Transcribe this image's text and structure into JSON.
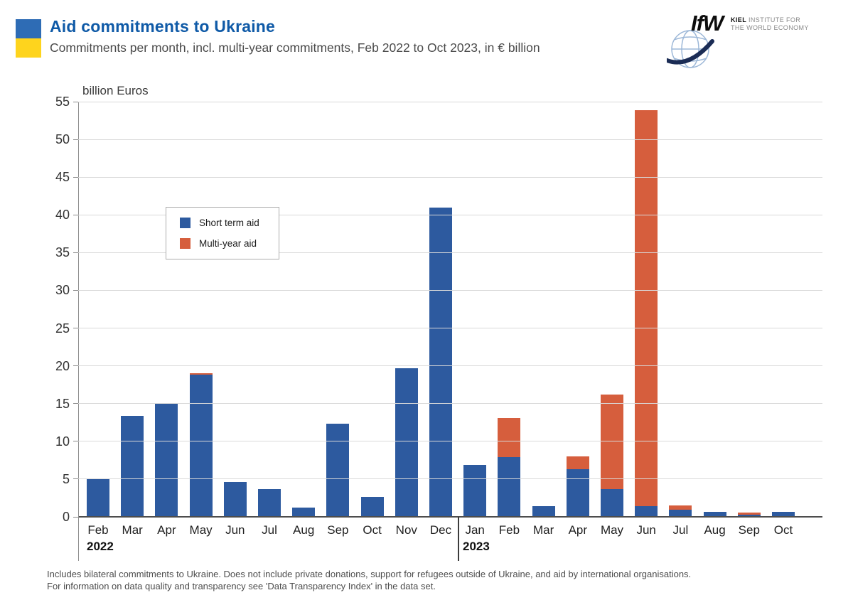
{
  "header": {
    "title": "Aid commitments to Ukraine",
    "subtitle": "Commitments per month, incl. multi-year commitments, Feb 2022 to Oct 2023, in € billion",
    "title_color": "#0f5aa7",
    "flag": {
      "top_color": "#2e6cb5",
      "bottom_color": "#fed41d"
    }
  },
  "logo": {
    "short_name": "IfW",
    "line1_bold": "KIEL",
    "line1_rest": " INSTITUTE FOR",
    "line2": "THE WORLD ECONOMY"
  },
  "chart_data": {
    "type": "bar",
    "stacked": true,
    "ylabel": "billion Euros",
    "ylim": [
      0,
      55
    ],
    "ytick_step": 5,
    "grid": true,
    "legend_position": "upper-left-inside",
    "categories": [
      "Feb",
      "Mar",
      "Apr",
      "May",
      "Jun",
      "Jul",
      "Aug",
      "Sep",
      "Oct",
      "Nov",
      "Dec",
      "Jan",
      "Feb",
      "Mar",
      "Apr",
      "May",
      "Jun",
      "Jul",
      "Aug",
      "Sep",
      "Oct"
    ],
    "year_groups": [
      {
        "label": "2022",
        "start": 0,
        "end": 10
      },
      {
        "label": "2023",
        "start": 11,
        "end": 20
      }
    ],
    "series": [
      {
        "name": "Short term aid",
        "color": "#2d5a9f",
        "values": [
          5.1,
          13.4,
          15.0,
          18.8,
          4.6,
          3.7,
          1.2,
          12.3,
          2.6,
          19.7,
          41.0,
          6.9,
          7.9,
          1.4,
          6.3,
          3.7,
          1.4,
          0.9,
          0.7,
          0.3,
          0.7
        ]
      },
      {
        "name": "Multi-year aid",
        "color": "#d65e3d",
        "values": [
          0,
          0,
          0,
          0.2,
          0,
          0,
          0,
          0,
          0,
          0,
          0,
          0,
          5.2,
          0,
          1.7,
          12.5,
          52.5,
          0.6,
          0,
          0.3,
          0
        ]
      }
    ]
  },
  "footnote": {
    "line1": "Includes bilateral commitments to Ukraine. Does not include private donations, support for refugees outside of Ukraine, and aid by international organisations.",
    "line2": "For information on data quality and transparency see 'Data Transparency Index' in the data set."
  }
}
